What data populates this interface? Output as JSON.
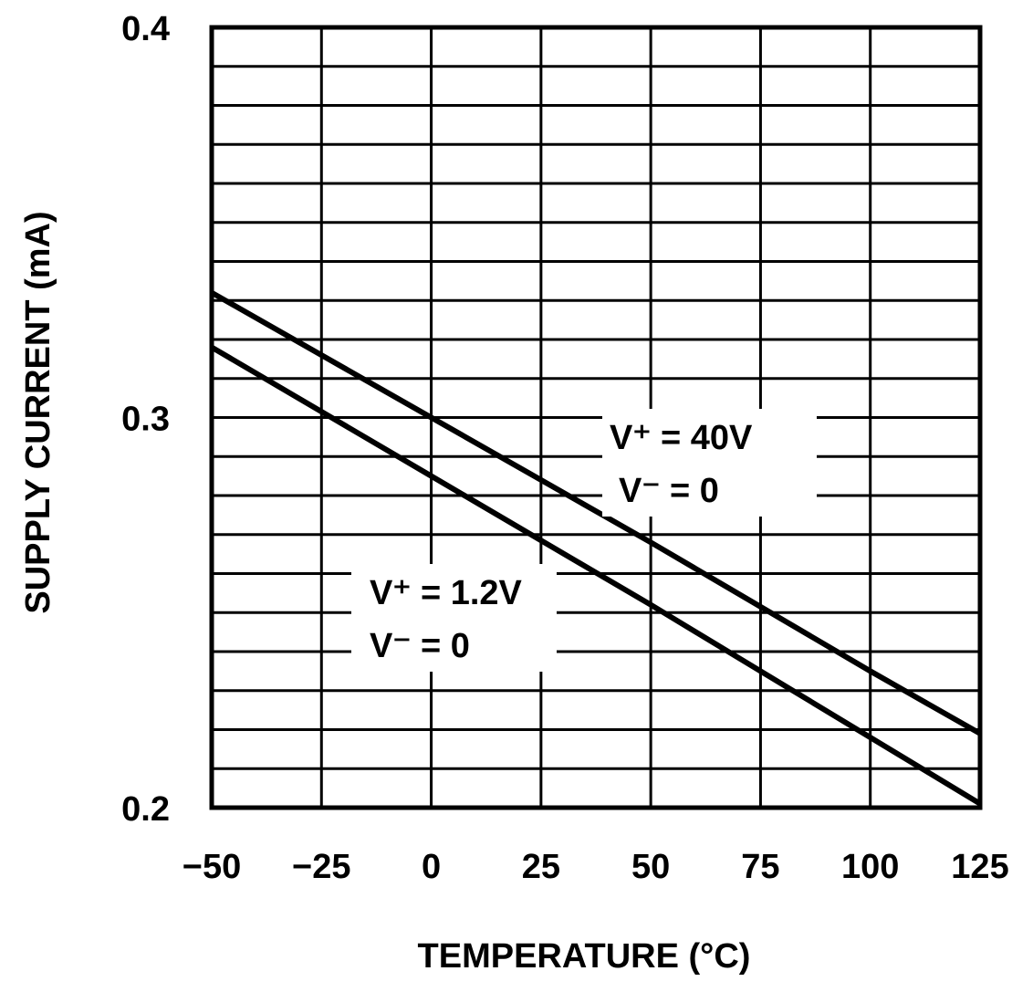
{
  "chart_data": {
    "type": "line",
    "xlabel": "TEMPERATURE (°C)",
    "ylabel": "SUPPLY CURRENT (mA)",
    "xlim": [
      -50,
      125
    ],
    "ylim": [
      0.2,
      0.4
    ],
    "x_ticks": [
      "-50",
      "-25",
      "0",
      "25",
      "50",
      "75",
      "100",
      "125"
    ],
    "y_ticks": [
      "0.2",
      "0.3",
      "0.4"
    ],
    "grid": true,
    "x_grid_step": 25,
    "y_grid_step": 0.01,
    "series": [
      {
        "x": [
          -50,
          0,
          50,
          100,
          125
        ],
        "y": [
          0.332,
          0.3,
          0.268,
          0.235,
          0.219
        ]
      },
      {
        "x": [
          -50,
          0,
          50,
          100,
          125
        ],
        "y": [
          0.318,
          0.285,
          0.252,
          0.218,
          0.201
        ]
      }
    ],
    "annotations": [
      {
        "line1": "V⁺ = 40V",
        "line2": "V⁻ = 0"
      },
      {
        "line1": "V⁺ = 1.2V",
        "line2": "V⁻ = 0"
      }
    ],
    "line_color": "#000000"
  }
}
